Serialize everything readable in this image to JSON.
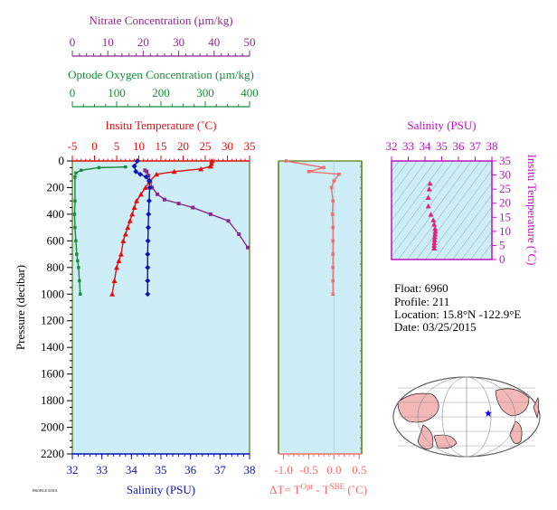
{
  "colors": {
    "nitrate": "#8B2A8B",
    "oxygen": "#1A8A3A",
    "temperature": "#E01010",
    "salinity": "#0A14B4",
    "dt": "#F07070",
    "ts_axis": "#C010C0",
    "ts_points": "#E0207A",
    "panel_bg": "#CDEEF6",
    "olive_frame": "#5A7A10"
  },
  "profile_chart": {
    "nitrate_axis": {
      "title": "Nitrate Concentration (µm/kg)",
      "ticks": [
        "0",
        "10",
        "20",
        "30",
        "40",
        "50"
      ],
      "range": [
        0,
        50
      ]
    },
    "oxygen_axis": {
      "title": "Optode Oxygen Concentration (µm/kg)",
      "ticks": [
        "0",
        "100",
        "200",
        "300",
        "400"
      ],
      "range": [
        0,
        400
      ]
    },
    "temperature_axis": {
      "title": "Insitu Temperature (˚C)",
      "ticks": [
        "-5",
        "0",
        "5",
        "10",
        "15",
        "20",
        "25",
        "30",
        "35"
      ],
      "range": [
        -5,
        35
      ]
    },
    "salinity_axis": {
      "title": "Salinity (PSU)",
      "ticks": [
        "32",
        "33",
        "34",
        "35",
        "36",
        "37",
        "38"
      ],
      "range": [
        32,
        38
      ]
    },
    "pressure_axis": {
      "title": "Pressure (decibar)",
      "ticks": [
        "0",
        "200",
        "400",
        "600",
        "800",
        "1000",
        "1200",
        "1400",
        "1600",
        "1800",
        "2000",
        "2200"
      ],
      "range": [
        0,
        2200
      ]
    }
  },
  "dt_chart": {
    "axis_title": "ΔT= T",
    "axis_sup1": "Opt",
    "axis_mid": " - T",
    "axis_sup2": "SBE",
    "axis_unit": " (˚C)",
    "ticks": [
      "-1.0",
      "-0.5",
      "0.0",
      "0.5"
    ],
    "range": [
      -1.1,
      0.55
    ]
  },
  "ts_chart": {
    "salinity_title": "Salinity (PSU)",
    "salinity_ticks": [
      "32",
      "33",
      "34",
      "35",
      "36",
      "37",
      "38"
    ],
    "temp_title": "Insitu Temperature (˚C)",
    "temp_ticks": [
      "0",
      "5",
      "10",
      "15",
      "20",
      "25",
      "30",
      "35"
    ]
  },
  "info": {
    "float": "Float:  6960",
    "profile": "Profile:  211",
    "location": "Location:  15.8°N  -122.9°E",
    "date": "Date:  03/25/2015"
  },
  "footer_note": "PROFILE DATA",
  "chart_data": [
    {
      "type": "line",
      "name": "Nitrate",
      "x": [
        20.5,
        21,
        21.5,
        22,
        22.5,
        24,
        26,
        30,
        34,
        39,
        44,
        47,
        49.5
      ],
      "y": [
        70,
        80,
        110,
        150,
        200,
        250,
        290,
        320,
        350,
        400,
        450,
        550,
        650
      ]
    },
    {
      "type": "line",
      "name": "Optode Oxygen",
      "x": [
        120,
        60,
        20,
        8,
        6,
        6,
        5,
        6,
        8,
        10,
        12,
        14,
        16,
        18
      ],
      "y": [
        45,
        50,
        70,
        90,
        120,
        300,
        400,
        500,
        600,
        700,
        750,
        800,
        900,
        1000
      ]
    },
    {
      "type": "line",
      "name": "Insitu Temperature",
      "x": [
        26.5,
        26.4,
        26.2,
        24,
        18,
        14,
        12.5,
        11.5,
        10.5,
        9.5,
        9,
        8.5,
        8,
        7.5,
        7,
        6.5,
        6,
        5.5,
        5,
        4.5,
        4
      ],
      "y": [
        0,
        20,
        40,
        60,
        80,
        100,
        150,
        200,
        250,
        300,
        350,
        400,
        450,
        500,
        550,
        600,
        700,
        750,
        800,
        900,
        1000
      ]
    },
    {
      "type": "line",
      "name": "Salinity",
      "x": [
        34.2,
        34.1,
        34.15,
        34.3,
        34.5,
        34.6,
        34.62,
        34.6,
        34.58,
        34.57,
        34.56,
        34.55,
        34.55,
        34.55,
        34.55
      ],
      "y": [
        0,
        40,
        80,
        100,
        120,
        150,
        200,
        300,
        400,
        500,
        600,
        700,
        800,
        900,
        1000
      ]
    },
    {
      "type": "line",
      "name": "Delta T",
      "x": [
        -0.95,
        -0.2,
        -0.5,
        0.1,
        0.0,
        -0.05,
        -0.02,
        -0.03,
        -0.02,
        -0.02,
        -0.02,
        -0.02,
        -0.02,
        -0.02
      ],
      "y": [
        0,
        50,
        80,
        100,
        150,
        200,
        300,
        400,
        500,
        600,
        700,
        800,
        900,
        1000
      ]
    },
    {
      "type": "scatter",
      "name": "T-S",
      "x": [
        34.3,
        34.25,
        34.2,
        34.2,
        34.35,
        34.5,
        34.55,
        34.6,
        34.62,
        34.6,
        34.58,
        34.57,
        34.56,
        34.55,
        34.55
      ],
      "y": [
        27,
        25,
        22,
        19,
        16,
        14,
        12.5,
        11,
        10,
        9,
        8,
        7,
        6,
        5,
        4
      ]
    }
  ]
}
